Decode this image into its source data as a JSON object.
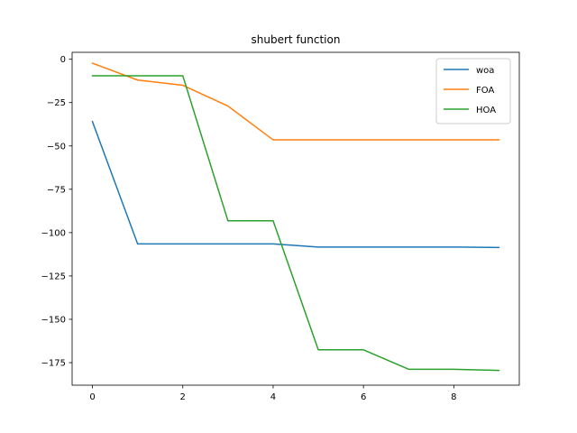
{
  "chart_data": {
    "type": "line",
    "title": "shubert function",
    "xlabel": "",
    "ylabel": "",
    "xlim": [
      -0.45,
      9.45
    ],
    "ylim": [
      -188,
      4
    ],
    "xticks": [
      0,
      2,
      4,
      6,
      8
    ],
    "yticks": [
      0,
      -25,
      -50,
      -75,
      -100,
      -125,
      -150,
      -175
    ],
    "xtick_labels": [
      "0",
      "2",
      "4",
      "6",
      "8"
    ],
    "ytick_labels": [
      "0",
      "−25",
      "−50",
      "−75",
      "−100",
      "−125",
      "−150",
      "−175"
    ],
    "grid": false,
    "legend_position": "top-right",
    "x": [
      0,
      1,
      2,
      3,
      4,
      5,
      6,
      7,
      8,
      9
    ],
    "series": [
      {
        "name": "woa",
        "color": "#1f77b4",
        "values": [
          -36,
          -106.5,
          -106.5,
          -106.5,
          -106.5,
          -108.3,
          -108.3,
          -108.3,
          -108.3,
          -108.6
        ]
      },
      {
        "name": "FOA",
        "color": "#ff7f0e",
        "values": [
          -2.3,
          -12,
          -15,
          -27,
          -46.5,
          -46.5,
          -46.5,
          -46.5,
          -46.5,
          -46.5
        ]
      },
      {
        "name": "HOA",
        "color": "#2ca02c",
        "values": [
          -9.5,
          -9.5,
          -9.5,
          -93.2,
          -93.2,
          -167.6,
          -167.6,
          -178.8,
          -178.8,
          -179.5
        ]
      }
    ]
  }
}
